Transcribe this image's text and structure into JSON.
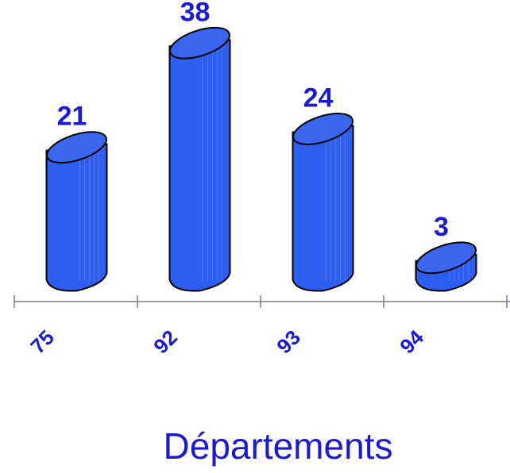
{
  "chart_data": {
    "type": "bar",
    "categories": [
      "75",
      "92",
      "93",
      "94",
      ""
    ],
    "values": [
      21,
      38,
      24,
      3,
      null
    ],
    "data_labels": [
      "21",
      "38",
      "24",
      "3",
      ""
    ],
    "title": "",
    "xlabel": "Départements",
    "ylabel": "",
    "ylim": [
      0,
      40
    ],
    "grid": false,
    "legend": "none",
    "bar_style": "3d-cylinder",
    "colors": {
      "bar_fill": "#2e5ef0",
      "bar_top": "#3a66ee",
      "bar_stroke": "#000000",
      "axis": "#7a7a9a",
      "text": "#1a1ad6"
    }
  }
}
